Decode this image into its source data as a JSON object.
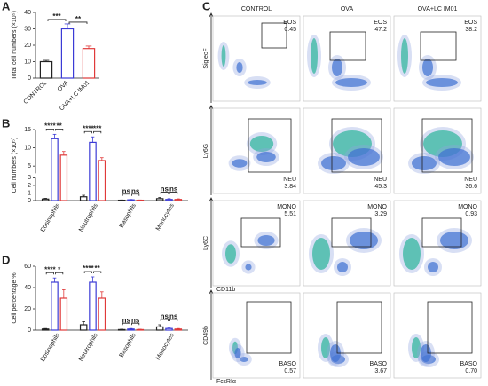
{
  "chart_data": [
    {
      "type": "bar",
      "label": "A",
      "ylabel": "Total cell numbers (×10⁵)",
      "categories": [
        "CONTROL",
        "OVA",
        "OVA+LC IM01"
      ],
      "values": [
        10,
        30,
        18
      ],
      "errors": [
        0.8,
        3,
        1.5
      ],
      "colors": [
        "#222222",
        "#3b3bd6",
        "#e03a3a"
      ],
      "ylim": [
        0,
        40
      ],
      "yticks": [
        0,
        10,
        20,
        30,
        40
      ],
      "significance": [
        "***",
        "**"
      ]
    },
    {
      "type": "grouped_bar",
      "label": "B",
      "ylabel": "Cell numbers (×10⁵)",
      "categories": [
        "Eosinophils",
        "Neutrophils",
        "Basophils",
        "Monocytes"
      ],
      "series": [
        {
          "color": "#222222",
          "values": [
            0.2,
            0.5,
            0.05,
            0.25
          ],
          "errors": [
            0.1,
            0.2,
            0.03,
            0.15
          ]
        },
        {
          "color": "#3b3bd6",
          "values": [
            12.5,
            11.5,
            0.1,
            0.15
          ],
          "errors": [
            1.2,
            1.5,
            0.05,
            0.1
          ]
        },
        {
          "color": "#e03a3a",
          "values": [
            8,
            6.5,
            0.05,
            0.15
          ],
          "errors": [
            1,
            0.8,
            0.03,
            0.08
          ]
        }
      ],
      "ylim": [
        0,
        15
      ],
      "ybreak": 3,
      "yticks": [
        0,
        1,
        2,
        3,
        5,
        10,
        15
      ],
      "significance": [
        [
          "****",
          "**"
        ],
        [
          "****",
          "***"
        ],
        [
          "ns",
          "ns"
        ],
        [
          "ns",
          "ns"
        ]
      ]
    },
    {
      "type": "grouped_bar",
      "label": "D",
      "ylabel": "Cell percentage %",
      "categories": [
        "Eosinophils",
        "Neutrophils",
        "Basophils",
        "Monocytes"
      ],
      "series": [
        {
          "color": "#222222",
          "values": [
            1,
            5,
            0.5,
            3
          ],
          "errors": [
            0.5,
            3,
            0.3,
            2
          ]
        },
        {
          "color": "#3b3bd6",
          "values": [
            45,
            45,
            1,
            1.5
          ],
          "errors": [
            4,
            5,
            0.5,
            1
          ]
        },
        {
          "color": "#e03a3a",
          "values": [
            30,
            30,
            0.5,
            1
          ],
          "errors": [
            8,
            6,
            0.3,
            0.5
          ]
        }
      ],
      "ylim": [
        0,
        60
      ],
      "yticks": [
        0,
        20,
        40,
        60
      ],
      "significance": [
        [
          "****",
          "*"
        ],
        [
          "****",
          "**"
        ],
        [
          "ns",
          "ns"
        ],
        [
          "ns",
          "ns"
        ]
      ]
    }
  ],
  "flow": {
    "label": "C",
    "columns": [
      "CONTROL",
      "OVA",
      "OVA+LC IM01"
    ],
    "rows": [
      {
        "ylabel": "SiglecF",
        "gate": "EOS",
        "values": [
          "0.45",
          "47.2",
          "38.2"
        ]
      },
      {
        "ylabel": "Ly6G",
        "gate": "NEU",
        "values": [
          "3.84",
          "45.3",
          "36.6"
        ]
      },
      {
        "ylabel": "Ly6C",
        "xlabel": "CD11b",
        "gate": "MONO",
        "values": [
          "5.51",
          "3.29",
          "0.93"
        ]
      },
      {
        "ylabel": "CD49b",
        "xlabel": "FcεRIα",
        "gate": "BASO",
        "values": [
          "0.57",
          "3.67",
          "0.70"
        ]
      }
    ]
  }
}
